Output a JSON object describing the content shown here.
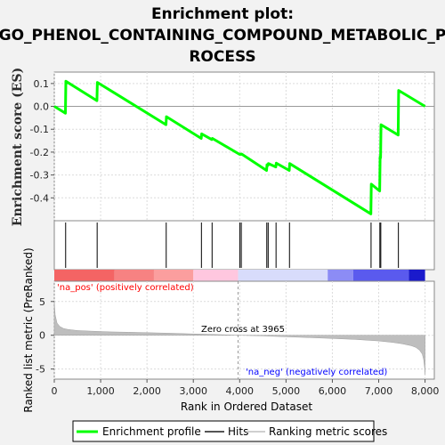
{
  "colors": {
    "background": "#f2f2f2",
    "plot_bg": "#ffffff",
    "profile": "#00ff00",
    "hits": "#000000",
    "metric_fill": "#bebebe",
    "pos_text": "#ff0000",
    "neg_text": "#0000ff",
    "grid": "#dcdcdc"
  },
  "chart_data": [
    {
      "type": "line",
      "title_lines": [
        "Enrichment plot:",
        "GO_PHENOL_CONTAINING_COMPOUND_METABOLIC_P",
        "ROCESS"
      ],
      "ylabel": "Enrichment score (ES)",
      "xlim": [
        0,
        8200
      ],
      "ylim": [
        -0.5,
        0.15
      ],
      "yticks": [
        -0.4,
        -0.3,
        -0.2,
        -0.1,
        0.0,
        0.1
      ],
      "ytick_labels": [
        "-0.4",
        "-0.3",
        "-0.2",
        "-0.1",
        "0.0",
        "0.1"
      ],
      "grid": true,
      "series": [
        {
          "name": "Enrichment profile",
          "x": [
            0,
            240,
            250,
            920,
            930,
            2410,
            2420,
            3170,
            3180,
            3400,
            3410,
            4000,
            4010,
            4030,
            4040,
            4580,
            4590,
            4610,
            4620,
            4780,
            4790,
            5070,
            5080,
            6830,
            6840,
            7020,
            7030,
            7040,
            7050,
            7420,
            7430,
            8000
          ],
          "y": [
            0.0,
            -0.03,
            0.11,
            0.025,
            0.105,
            -0.08,
            -0.045,
            -0.14,
            -0.12,
            -0.145,
            -0.14,
            -0.21,
            -0.208,
            -0.21,
            -0.208,
            -0.28,
            -0.255,
            -0.258,
            -0.25,
            -0.265,
            -0.248,
            -0.28,
            -0.25,
            -0.47,
            -0.34,
            -0.37,
            -0.22,
            -0.225,
            -0.08,
            -0.125,
            0.07,
            0.0
          ]
        }
      ]
    },
    {
      "type": "scatter",
      "name": "Hits",
      "hit_positions": [
        245,
        925,
        2415,
        3175,
        3405,
        4005,
        4035,
        4585,
        4615,
        4785,
        5075,
        6835,
        7025,
        7045,
        7425
      ]
    },
    {
      "type": "area",
      "ylabel": "Ranked list metric (PreRanked)",
      "xlabel": "Rank in Ordered Dataset",
      "xlim": [
        0,
        8200
      ],
      "ylim": [
        -6.5,
        8
      ],
      "xticks": [
        0,
        1000,
        2000,
        3000,
        4000,
        5000,
        6000,
        7000,
        8000
      ],
      "xtick_labels": [
        "0",
        "1,000",
        "2,000",
        "3,000",
        "4,000",
        "5,000",
        "6,000",
        "7,000",
        "8,000"
      ],
      "yticks": [
        -5,
        0,
        5
      ],
      "ytick_labels": [
        "-5",
        "0",
        "5"
      ],
      "series": [
        {
          "name": "Ranking metric scores",
          "x": [
            0,
            20,
            60,
            120,
            200,
            300,
            500,
            800,
            1200,
            1600,
            2000,
            2500,
            3000,
            3500,
            3965,
            4500,
            5000,
            5500,
            6000,
            6500,
            7000,
            7300,
            7500,
            7700,
            7800,
            7880,
            7940,
            7970,
            7990,
            8000
          ],
          "y": [
            5.0,
            3.0,
            1.8,
            1.3,
            1.0,
            0.85,
            0.7,
            0.6,
            0.5,
            0.45,
            0.38,
            0.3,
            0.2,
            0.1,
            0.0,
            -0.1,
            -0.22,
            -0.35,
            -0.48,
            -0.62,
            -0.85,
            -1.05,
            -1.25,
            -1.55,
            -1.8,
            -2.2,
            -2.8,
            -3.6,
            -4.8,
            -5.8
          ]
        }
      ],
      "annotations": {
        "zero_cross": "Zero cross at 3965",
        "pos": "'na_pos' (positively correlated)",
        "neg": "'na_neg' (negatively correlated)"
      },
      "zero_cross_rank": 3965
    }
  ],
  "legend": {
    "items": [
      {
        "label": "Enrichment profile",
        "color": "#00ff00"
      },
      {
        "label": "Hits",
        "color": "#000000"
      },
      {
        "label": "Ranking metric scores",
        "color": "#bebebe"
      }
    ]
  }
}
